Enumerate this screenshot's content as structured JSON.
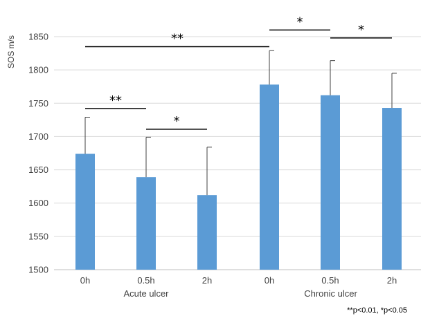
{
  "chart_data": {
    "type": "bar",
    "ylabel": "SOS m/s",
    "ylim": [
      1500,
      1850
    ],
    "yticks": [
      1500,
      1550,
      1600,
      1650,
      1700,
      1750,
      1800,
      1850
    ],
    "grid": true,
    "bar_color": "#5b9bd5",
    "categories": [
      "0h",
      "0.5h",
      "2h",
      "0h",
      "0.5h",
      "2h"
    ],
    "groups": [
      {
        "label": "Acute ulcer",
        "indices": [
          0,
          1,
          2
        ]
      },
      {
        "label": "Chronic ulcer",
        "indices": [
          3,
          4,
          5
        ]
      }
    ],
    "values": [
      1674,
      1639,
      1612,
      1778,
      1762,
      1743
    ],
    "errors": [
      55,
      60,
      72,
      51,
      52,
      52
    ],
    "significance": [
      {
        "from": 0,
        "to": 3,
        "label": "**",
        "y": 1835
      },
      {
        "from": 0,
        "to": 1,
        "label": "**",
        "y": 1742
      },
      {
        "from": 1,
        "to": 2,
        "label": "*",
        "y": 1711
      },
      {
        "from": 3,
        "to": 4,
        "label": "*",
        "y": 1860
      },
      {
        "from": 4,
        "to": 5,
        "label": "*",
        "y": 1848
      }
    ],
    "footnote": "**p<0.01, *p<0.05"
  }
}
